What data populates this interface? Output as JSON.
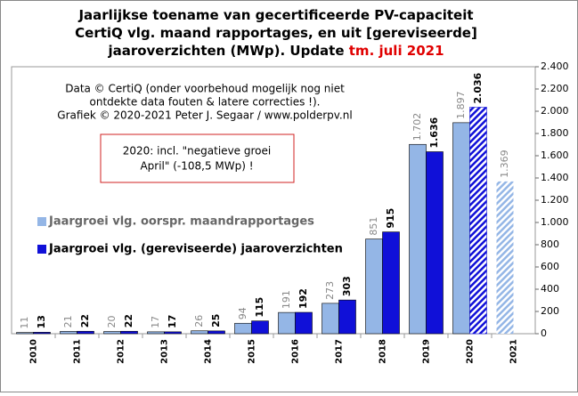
{
  "chart_data": {
    "type": "bar",
    "title_lines": [
      "Jaarlijkse toename van gecertificeerde PV-capaciteit",
      "CertiQ vlg. maand rapportages, en uit [gereviseerde]",
      "jaaroverzichten (MWp). Update"
    ],
    "title_highlight": "tm. juli 2021",
    "note_lines": [
      "Data © CertiQ (onder voorbehoud mogelijk nog niet",
      "ontdekte data fouten & latere correcties !).",
      "Grafiek © 2020-2021 Peter J. Segaar / www.polderpv.nl"
    ],
    "box_lines": [
      "2020: incl. \"negatieve groei",
      "April\"  (-108,5 MWp) !"
    ],
    "categories": [
      "2010",
      "2011",
      "2012",
      "2013",
      "2014",
      "2015",
      "2016",
      "2017",
      "2018",
      "2019",
      "2020",
      "2021"
    ],
    "series": [
      {
        "name": "Jaargroei vlg. oorspr. maandrapportages",
        "color": "#94b6e6",
        "values": [
          11,
          21,
          20,
          17,
          26,
          94,
          191,
          273,
          851,
          1702,
          1897,
          1369
        ],
        "value_labels": [
          "11",
          "21",
          "20",
          "17",
          "26",
          "94",
          "191",
          "273",
          "851",
          "1.702",
          "1.897",
          "1.369"
        ],
        "hatched": [
          11
        ]
      },
      {
        "name": "Jaargroei vlg. (gereviseerde) jaaroverzichten",
        "color": "#1010d8",
        "values": [
          13,
          22,
          22,
          17,
          25,
          115,
          192,
          303,
          915,
          1636,
          2036,
          null
        ],
        "value_labels": [
          "13",
          "22",
          "22",
          "17",
          "25",
          "115",
          "192",
          "303",
          "915",
          "1.636",
          "2.036",
          null
        ],
        "hatched": [
          10
        ]
      }
    ],
    "ylim": [
      0,
      2400
    ],
    "yticks": [
      0,
      200,
      400,
      600,
      800,
      {
        "value": 1000,
        "label": "1.000"
      },
      {
        "value": 1200,
        "label": "1.200"
      },
      {
        "value": 1400,
        "label": "1.400"
      },
      {
        "value": 1600,
        "label": "1.600"
      },
      {
        "value": 1800,
        "label": "1.800"
      },
      {
        "value": 2000,
        "label": "2.000"
      },
      {
        "value": 2200,
        "label": "2.200"
      },
      {
        "value": 2400,
        "label": "2.400"
      }
    ],
    "grid": false
  }
}
